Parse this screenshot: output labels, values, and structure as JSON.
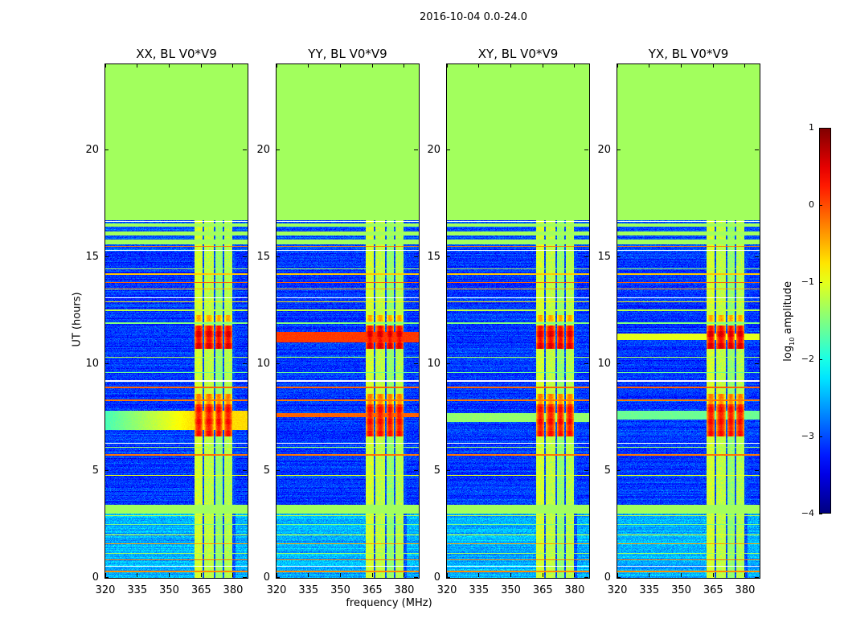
{
  "chart_data": {
    "type": "heatmap",
    "title": "2016-10-04 0.0-24.0",
    "xlabel": "frequency (MHz)",
    "ylabel": "UT (hours)",
    "xlim": [
      320,
      386.8
    ],
    "ylim": [
      0,
      24
    ],
    "xticks": [
      320,
      335,
      350,
      365,
      380
    ],
    "yticks": [
      0,
      5,
      10,
      15,
      20
    ],
    "colormap": "jet",
    "colorbar": {
      "label_main": "log",
      "label_sub": "10",
      "label_rest": " amplitude",
      "range": [
        -4,
        1
      ],
      "ticks": [
        1,
        0,
        -1,
        -2,
        -3,
        -4
      ],
      "tick_labels": [
        "1",
        "0",
        "−1",
        "−2",
        "−3",
        "−4"
      ]
    },
    "flag_value": -1.33,
    "flagged_time_ranges": [
      [
        16.7,
        24
      ],
      [
        3.0,
        3.4
      ],
      [
        15.6,
        15.8
      ],
      [
        16.0,
        16.2
      ],
      [
        16.4,
        16.55
      ]
    ],
    "background": [
      {
        "t": [
          0,
          3.0
        ],
        "mean": -2.5
      },
      {
        "t": [
          3.4,
          15.2
        ],
        "mean": -3.1
      },
      {
        "t": [
          15.2,
          16.7
        ],
        "mean": -3.0
      }
    ],
    "rfi_columns": [
      [
        362,
        365.8,
        -1.1
      ],
      [
        366.6,
        370.8,
        -1.2
      ],
      [
        371.6,
        375,
        -1.4
      ],
      [
        375.8,
        379.6,
        -1.25
      ]
    ],
    "rfi_bursts": [
      [
        10.7,
        11.8,
        0.6
      ],
      [
        6.6,
        8.1,
        0.4
      ],
      [
        8.1,
        8.6,
        -0.3
      ],
      [
        12.0,
        12.3,
        -0.4
      ]
    ],
    "horizontal_lines": [
      [
        0.3,
        -0.3
      ],
      [
        0.85,
        -0.2
      ],
      [
        1.15,
        -1.3
      ],
      [
        1.6,
        -0.4
      ],
      [
        2.0,
        -1.0
      ],
      [
        2.5,
        -1.5
      ],
      [
        2.9,
        -1.2
      ],
      [
        4.8,
        -1.0
      ],
      [
        5.75,
        -0.2
      ],
      [
        6.1,
        -1.3
      ],
      [
        8.3,
        -0.2
      ],
      [
        8.9,
        -0.1
      ],
      [
        10.3,
        -1.3
      ],
      [
        12.5,
        -1.2
      ],
      [
        12.9,
        -0.8
      ],
      [
        13.5,
        -0.5
      ],
      [
        13.8,
        -0.1
      ],
      [
        14.2,
        -0.6
      ],
      [
        14.45,
        -1.3
      ],
      [
        15.5,
        -0.2
      ],
      [
        9.6,
        -1.6
      ],
      [
        11.9,
        -1.5
      ]
    ],
    "blank_lines": [
      0.55,
      6.3,
      9.2,
      13.1,
      15.3,
      16.65
    ],
    "panels": [
      {
        "title": "XX, BL V0*V9",
        "broadband": [
          [
            6.9,
            7.8,
            -0.7
          ]
        ]
      },
      {
        "title": "YY, BL V0*V9",
        "broadband": [
          [
            11.0,
            11.5,
            0.1
          ],
          [
            7.5,
            7.7,
            -0.1
          ]
        ]
      },
      {
        "title": "XY, BL V0*V9",
        "broadband": [
          [
            7.3,
            7.7,
            -1.4
          ]
        ]
      },
      {
        "title": "YX, BL V0*V9",
        "broadband": [
          [
            11.1,
            11.4,
            -1.0
          ],
          [
            7.4,
            7.8,
            -1.6
          ]
        ]
      }
    ]
  }
}
